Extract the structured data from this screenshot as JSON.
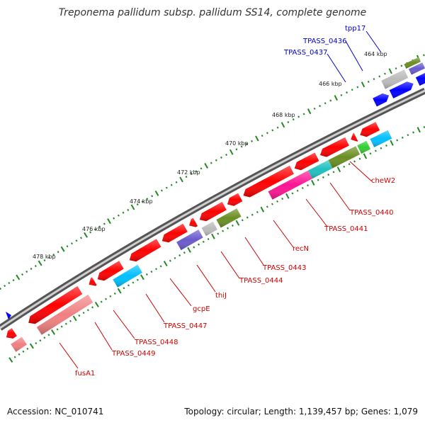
{
  "title": "Treponema pallidum subsp. pallidum SS14, complete genome",
  "scale_labels": [
    "464 kbp",
    "466 kbp",
    "468 kbp",
    "470 kbp",
    "472 kbp",
    "474 kbp",
    "476 kbp",
    "478 kbp"
  ],
  "forward_genes": [
    "tpp17",
    "TPASS_0436",
    "TPASS_0437"
  ],
  "reverse_genes": [
    "cheW2",
    "TPASS_0440",
    "TPASS_0441",
    "recN",
    "TPASS_0443",
    "TPASS_0444",
    "thiJ",
    "gcpE",
    "TPASS_0447",
    "TPASS_0448",
    "TPASS_0449",
    "fusA1"
  ],
  "footer": {
    "accession": "Accession: NC_010741",
    "summary": "Topology: circular; Length: 1,139,457 bp; Genes: 1,079"
  },
  "colors": {
    "forward_label": "#0000cc",
    "reverse_label": "#cc0000",
    "cds": "#ff0000",
    "backbone": "#888888",
    "ticks": "#228822",
    "gene_blue": "#0000ff",
    "gene_olive": "#6b8e23",
    "gene_gray": "#bbbbbb",
    "gene_cyan": "#00bfff",
    "gene_teal": "#20c0c0",
    "gene_pink": "#ff1493",
    "gene_purple": "#6a5acd",
    "gene_lightpink": "#f08080",
    "gene_green": "#32cd32"
  }
}
